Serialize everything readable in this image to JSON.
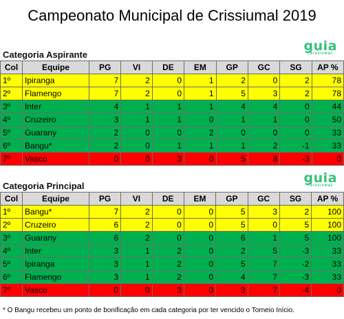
{
  "title": "Campeonato Municipal de Crissiumal 2019",
  "logo": {
    "text": "guia",
    "subtext": "CRISSIUMAL"
  },
  "headers": [
    "Col",
    "Equipe",
    "PG",
    "VI",
    "DE",
    "EM",
    "GP",
    "GC",
    "SG",
    "AP %"
  ],
  "aspirante": {
    "title": "Categoria Aspirante",
    "rows": [
      {
        "pos": "1º",
        "team": "Ipiranga",
        "pg": "7",
        "vi": "2",
        "de": "0",
        "em": "1",
        "gp": "2",
        "gc": "0",
        "sg": "2",
        "ap": "78",
        "color": "yellow"
      },
      {
        "pos": "2º",
        "team": "Flamengo",
        "pg": "7",
        "vi": "2",
        "de": "0",
        "em": "1",
        "gp": "5",
        "gc": "3",
        "sg": "2",
        "ap": "78",
        "color": "yellow"
      },
      {
        "pos": "3º",
        "team": "Inter",
        "pg": "4",
        "vi": "1",
        "de": "1",
        "em": "1",
        "gp": "4",
        "gc": "4",
        "sg": "0",
        "ap": "44",
        "color": "green"
      },
      {
        "pos": "4º",
        "team": "Cruzeiro",
        "pg": "3",
        "vi": "1",
        "de": "1",
        "em": "0",
        "gp": "1",
        "gc": "1",
        "sg": "0",
        "ap": "50",
        "color": "green"
      },
      {
        "pos": "5º",
        "team": "Guarany",
        "pg": "2",
        "vi": "0",
        "de": "0",
        "em": "2",
        "gp": "0",
        "gc": "0",
        "sg": "0",
        "ap": "33",
        "color": "green"
      },
      {
        "pos": "6º",
        "team": "Bangu*",
        "pg": "2",
        "vi": "0",
        "de": "1",
        "em": "1",
        "gp": "1",
        "gc": "2",
        "sg": "-1",
        "ap": "33",
        "color": "green"
      },
      {
        "pos": "7º",
        "team": "Vasco",
        "pg": "0",
        "vi": "0",
        "de": "3",
        "em": "0",
        "gp": "5",
        "gc": "8",
        "sg": "-3",
        "ap": "0",
        "color": "red"
      }
    ]
  },
  "principal": {
    "title": "Categoria Principal",
    "rows": [
      {
        "pos": "1º",
        "team": "Bangu*",
        "pg": "7",
        "vi": "2",
        "de": "0",
        "em": "0",
        "gp": "5",
        "gc": "3",
        "sg": "2",
        "ap": "100",
        "color": "yellow"
      },
      {
        "pos": "2º",
        "team": "Cruzeiro",
        "pg": "6",
        "vi": "2",
        "de": "0",
        "em": "0",
        "gp": "5",
        "gc": "0",
        "sg": "5",
        "ap": "100",
        "color": "yellow"
      },
      {
        "pos": "3º",
        "team": "Guarany",
        "pg": "6",
        "vi": "2",
        "de": "0",
        "em": "0",
        "gp": "6",
        "gc": "1",
        "sg": "5",
        "ap": "100",
        "color": "green"
      },
      {
        "pos": "4º",
        "team": "Inter",
        "pg": "3",
        "vi": "1",
        "de": "2",
        "em": "0",
        "gp": "2",
        "gc": "5",
        "sg": "-3",
        "ap": "33",
        "color": "green"
      },
      {
        "pos": "5º",
        "team": "Ipiranga",
        "pg": "3",
        "vi": "1",
        "de": "2",
        "em": "0",
        "gp": "5",
        "gc": "7",
        "sg": "-2",
        "ap": "33",
        "color": "green"
      },
      {
        "pos": "6º",
        "team": "Flamengo",
        "pg": "3",
        "vi": "1",
        "de": "2",
        "em": "0",
        "gp": "4",
        "gc": "7",
        "sg": "-3",
        "ap": "33",
        "color": "green"
      },
      {
        "pos": "7º",
        "team": "Vasco",
        "pg": "0",
        "vi": "0",
        "de": "3",
        "em": "0",
        "gp": "3",
        "gc": "7",
        "sg": "-4",
        "ap": "0",
        "color": "red"
      }
    ]
  },
  "footnote": "* O Bangu recebeu um ponto de bonificação em cada categoria por ter vencido o Torneio Início.",
  "colors": {
    "yellow": "#ffff00",
    "green": "#00b050",
    "red": "#ff0000",
    "header": "#d9d9d9",
    "logo": "#35c27a"
  }
}
